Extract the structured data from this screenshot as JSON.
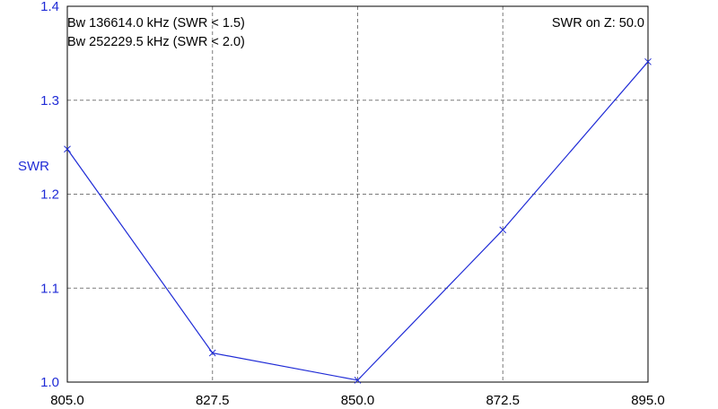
{
  "chart_data": {
    "type": "line",
    "ylabel": "SWR",
    "x_ticks": [
      "805.0",
      "827.5",
      "850.0",
      "872.5",
      "895.0"
    ],
    "y_ticks": [
      "1.0",
      "1.1",
      "1.2",
      "1.3",
      "1.4"
    ],
    "xlim": [
      805.0,
      895.0
    ],
    "ylim": [
      1.0,
      1.4
    ],
    "grid": true,
    "series": [
      {
        "color": "#1f2bd6",
        "x": [
          805.0,
          827.5,
          850.0,
          872.5,
          895.0
        ],
        "y": [
          1.248,
          1.031,
          1.002,
          1.162,
          1.341
        ]
      }
    ],
    "annotations": {
      "bw1": "Bw 136614.0 kHz (SWR < 1.5)",
      "bw2": "Bw 252229.5 kHz (SWR < 2.0)",
      "impedance": "SWR on Z: 50.0"
    }
  }
}
